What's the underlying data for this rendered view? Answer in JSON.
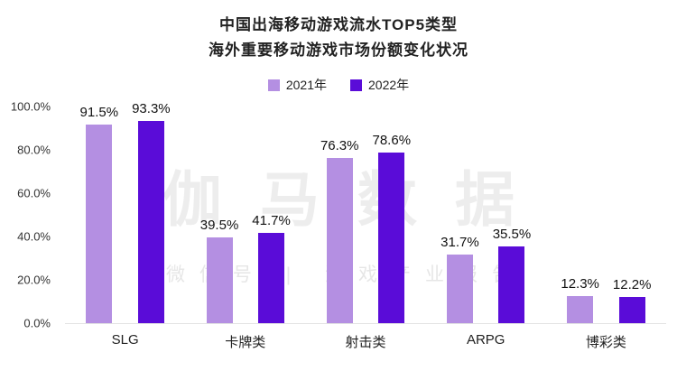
{
  "title": {
    "line1": "中国出海移动游戏流水TOP5类型",
    "line2": "海外重要移动游戏市场份额变化状况"
  },
  "watermark": {
    "line1": "伽马数据",
    "line2": "微信号 | 游戏产业报告"
  },
  "chart_data": {
    "type": "bar",
    "title": "中国出海移动游戏流水TOP5类型 海外重要移动游戏市场份额变化状况",
    "categories": [
      "SLG",
      "卡牌类",
      "射击类",
      "ARPG",
      "博彩类"
    ],
    "series": [
      {
        "name": "2021年",
        "color": "#b48fe2",
        "values": [
          91.5,
          39.5,
          76.3,
          31.7,
          12.3
        ]
      },
      {
        "name": "2022年",
        "color": "#5a0cd8",
        "values": [
          93.3,
          41.7,
          78.6,
          35.5,
          12.2
        ]
      }
    ],
    "y_ticks": [
      "100.0%",
      "80.0%",
      "60.0%",
      "40.0%",
      "20.0%",
      "0.0%"
    ],
    "ylim": [
      0,
      100
    ],
    "ylabel": "",
    "xlabel": "",
    "grid": false,
    "legend_position": "top",
    "value_labels": "shown above each bar, one decimal percent"
  }
}
